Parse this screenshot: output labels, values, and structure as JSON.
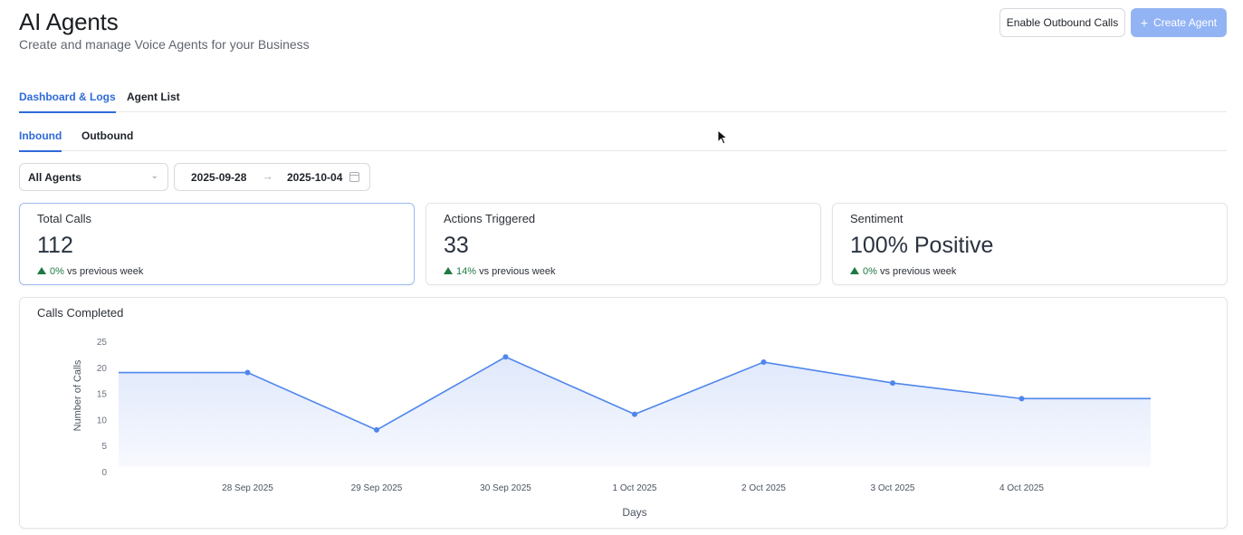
{
  "header": {
    "title": "AI Agents",
    "subtitle": "Create and manage Voice Agents for your Business",
    "enable_outbound_label": "Enable Outbound Calls",
    "create_agent_label": "Create Agent"
  },
  "tabs": {
    "main": [
      "Dashboard & Logs",
      "Agent List"
    ],
    "sub": [
      "Inbound",
      "Outbound"
    ]
  },
  "filters": {
    "agent_select": "All Agents",
    "date_start": "2025-09-28",
    "date_end": "2025-10-04"
  },
  "stats": [
    {
      "label": "Total Calls",
      "value": "112",
      "delta": "0%",
      "delta_text": "vs previous week"
    },
    {
      "label": "Actions Triggered",
      "value": "33",
      "delta": "14%",
      "delta_text": "vs previous week"
    },
    {
      "label": "Sentiment",
      "value": "100% Positive",
      "delta": "0%",
      "delta_text": "vs previous week"
    }
  ],
  "colors": {
    "accent": "#2f6ad9",
    "line": "#4f86ec",
    "positive": "#1e7a45"
  },
  "chart_data": {
    "type": "area",
    "title": "Calls Completed",
    "xlabel": "Days",
    "ylabel": "Number of Calls",
    "categories": [
      "28 Sep 2025",
      "29 Sep 2025",
      "30 Sep 2025",
      "1 Oct 2025",
      "2 Oct 2025",
      "3 Oct 2025",
      "4 Oct 2025"
    ],
    "values": [
      19,
      8,
      22,
      11,
      21,
      17,
      14
    ],
    "yticks": [
      0,
      5,
      10,
      15,
      20,
      25
    ],
    "ylim": [
      0,
      25
    ],
    "grid": false
  }
}
